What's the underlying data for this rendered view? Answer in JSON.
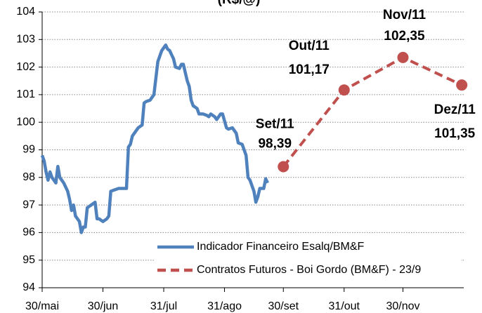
{
  "chart_data": {
    "type": "line",
    "title": "(R$/@)",
    "xlim": [
      0,
      215
    ],
    "xticks": [
      {
        "value": 0,
        "label": "30/mai"
      },
      {
        "value": 31,
        "label": "30/jun"
      },
      {
        "value": 62,
        "label": "31/jul"
      },
      {
        "value": 93,
        "label": "31/ago"
      },
      {
        "value": 123,
        "label": "30/set"
      },
      {
        "value": 154,
        "label": "31/out"
      },
      {
        "value": 184,
        "label": "30/nov"
      }
    ],
    "ylim": [
      94,
      104
    ],
    "yticks": [
      94,
      95,
      96,
      97,
      98,
      99,
      100,
      101,
      102,
      103,
      104
    ],
    "grid": true,
    "legend": "lower right",
    "series": [
      {
        "name": "Indicador Financeiro Esalq/BM&F",
        "color": "#4f81bd",
        "dashed": false,
        "markers": false,
        "x": [
          0,
          1,
          2,
          3,
          4,
          5,
          7,
          8,
          9,
          11,
          13,
          14,
          15,
          16,
          17,
          19,
          20,
          21,
          22,
          23,
          25,
          27,
          28,
          29,
          31,
          33,
          34,
          35,
          37,
          39,
          41,
          43,
          44,
          45,
          46,
          47,
          49,
          51,
          52,
          53,
          55,
          57,
          58,
          59,
          60,
          61,
          63,
          64,
          65,
          67,
          68,
          70,
          71,
          72,
          74,
          75,
          76,
          77,
          79,
          80,
          82,
          84,
          85,
          86,
          88,
          89,
          91,
          92,
          94,
          95,
          97,
          99,
          100,
          102,
          104,
          105,
          106,
          108,
          109,
          110,
          111,
          113,
          114,
          115
        ],
        "values": [
          98.8,
          98.6,
          98.2,
          97.9,
          98.2,
          98.0,
          97.8,
          98.4,
          98.0,
          97.8,
          97.5,
          97.2,
          96.8,
          97.0,
          96.6,
          96.4,
          96.0,
          96.2,
          96.2,
          96.9,
          97.0,
          97.1,
          96.5,
          96.5,
          96.4,
          96.5,
          96.6,
          97.5,
          97.55,
          97.6,
          97.6,
          97.6,
          99.1,
          99.2,
          99.5,
          99.6,
          99.8,
          99.9,
          100.7,
          100.75,
          100.8,
          101.0,
          101.6,
          102.2,
          102.4,
          102.6,
          102.8,
          102.65,
          102.6,
          102.3,
          102.0,
          101.95,
          102.1,
          102.1,
          101.5,
          101.3,
          100.8,
          100.6,
          100.5,
          100.3,
          100.3,
          100.25,
          100.2,
          100.3,
          100.2,
          100.1,
          100.3,
          100.3,
          99.8,
          99.75,
          99.8,
          99.6,
          99.25,
          99.2,
          98.8,
          98.0,
          97.9,
          97.5,
          97.1,
          97.3,
          97.6,
          97.6,
          97.95,
          97.8
        ]
      },
      {
        "name": "Contratos Futuros - Boi Gordo (BM&F) - 23/9",
        "color": "#c0504d",
        "dashed": true,
        "markers": true,
        "x": [
          123,
          154,
          184,
          214
        ],
        "values": [
          98.39,
          101.17,
          102.35,
          101.35
        ],
        "value_labels": [
          "98,39",
          "101,17",
          "102,35",
          "101,35"
        ],
        "point_labels": [
          "Set/11",
          "Out/11",
          "Nov/11",
          "Dez/11"
        ]
      }
    ]
  }
}
